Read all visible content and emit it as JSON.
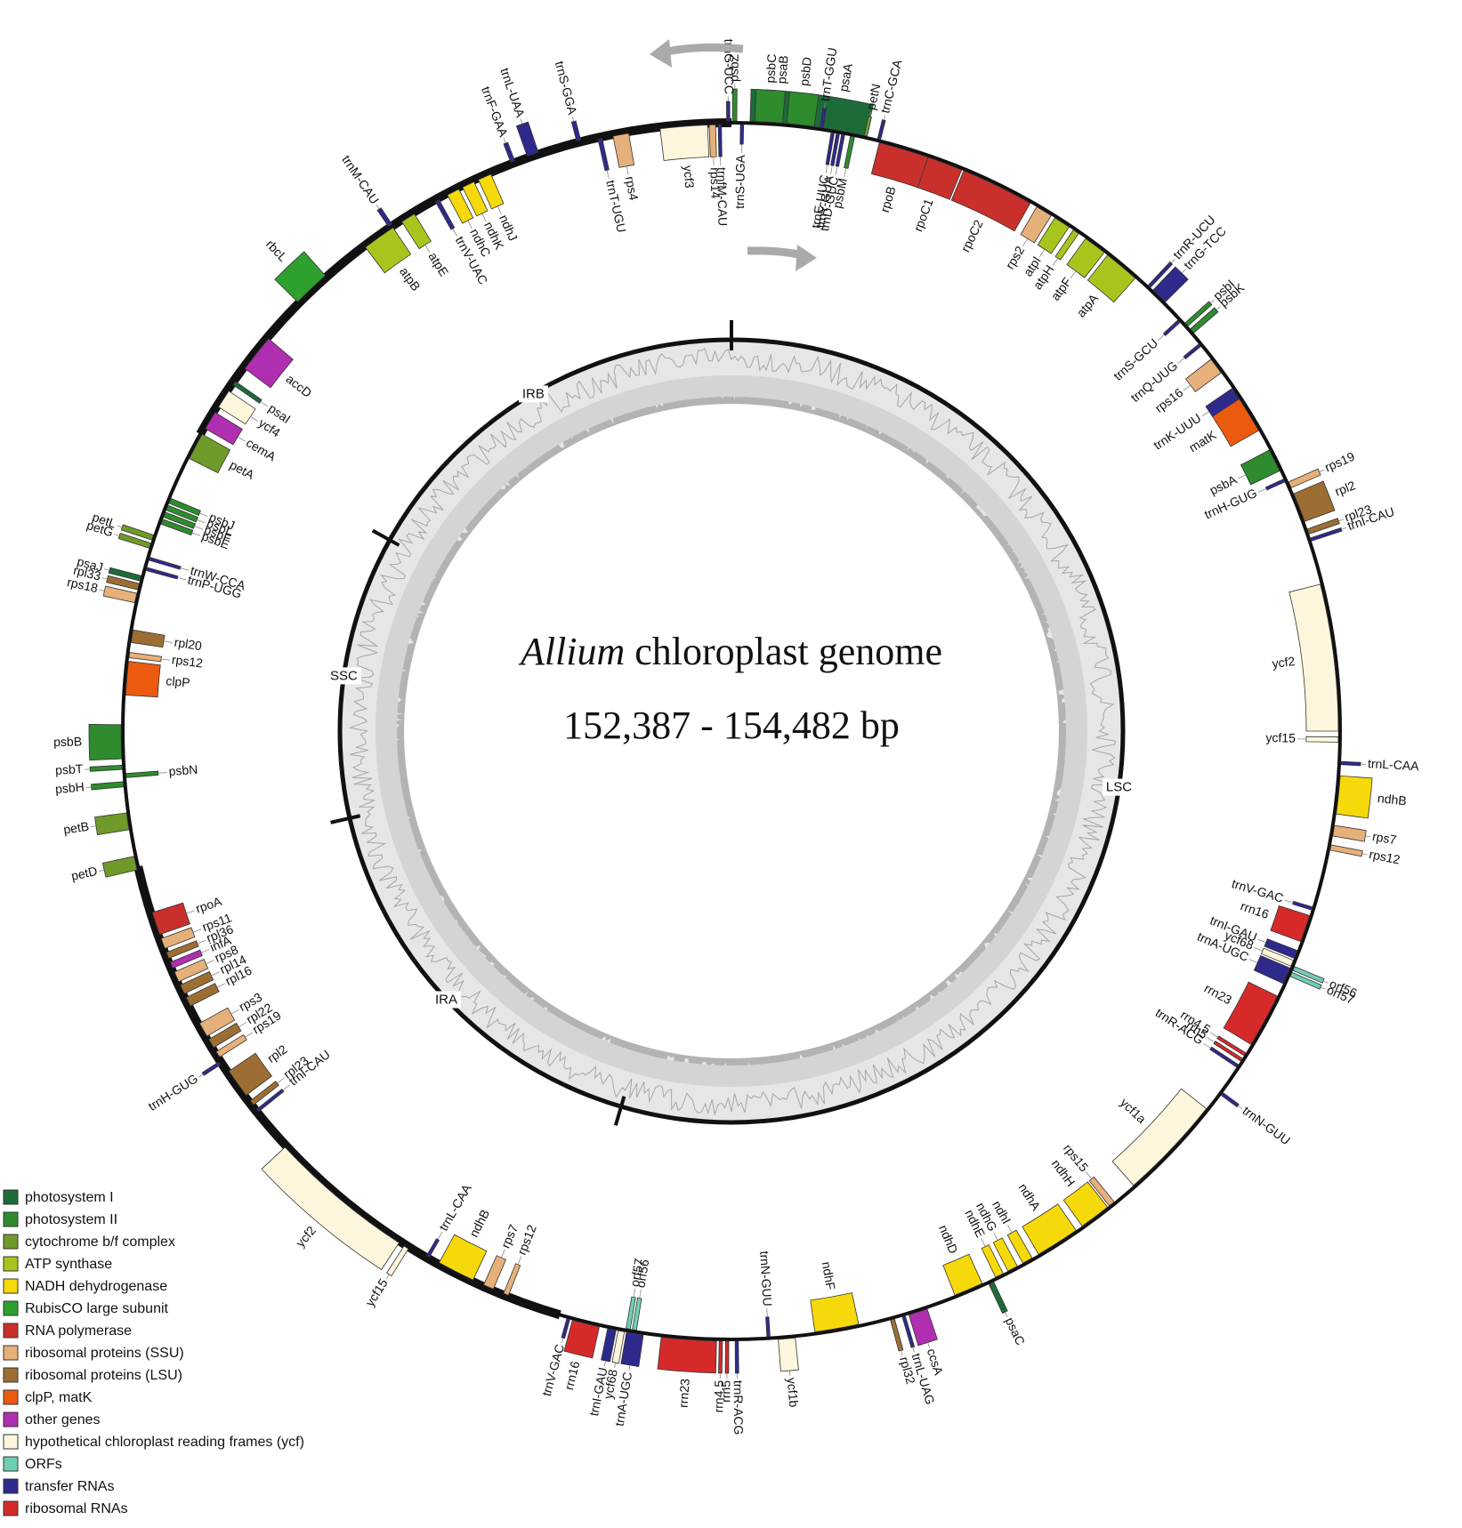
{
  "title": {
    "genus": "Allium",
    "rest": "chloroplast genome",
    "size": "152,387 - 154,482 bp"
  },
  "regions": [
    {
      "label": "LSC",
      "start": 0,
      "end": 84000
    },
    {
      "label": "IRA",
      "start": 84000,
      "end": 110000
    },
    {
      "label": "SSC",
      "start": 110000,
      "end": 128000
    },
    {
      "label": "IRB",
      "start": 128000,
      "end": 154000
    }
  ],
  "genome_length": 154000,
  "categories": [
    {
      "key": "psI",
      "label": "photosystem I",
      "color": "#1e6b3a"
    },
    {
      "key": "psII",
      "label": "photosystem II",
      "color": "#2e8b2e"
    },
    {
      "key": "cyt",
      "label": "cytochrome b/f complex",
      "color": "#6f9a2a"
    },
    {
      "key": "atp",
      "label": "ATP synthase",
      "color": "#a6c61e"
    },
    {
      "key": "ndh",
      "label": "NADH dehydrogenase",
      "color": "#f5d90a"
    },
    {
      "key": "rbc",
      "label": "RubisCO large subunit",
      "color": "#2ea02e"
    },
    {
      "key": "rpo",
      "label": "RNA polymerase",
      "color": "#c9302c"
    },
    {
      "key": "ssu",
      "label": "ribosomal proteins (SSU)",
      "color": "#e6b07a"
    },
    {
      "key": "lsu",
      "label": "ribosomal proteins (LSU)",
      "color": "#9c6e34"
    },
    {
      "key": "clp",
      "label": "clpP, matK",
      "color": "#ec5a10"
    },
    {
      "key": "oth",
      "label": "other genes",
      "color": "#b02eb0"
    },
    {
      "key": "ycf",
      "label": "hypothetical chloroplast reading frames (ycf)",
      "color": "#fdf6dc"
    },
    {
      "key": "orf",
      "label": "ORFs",
      "color": "#6fcfb5"
    },
    {
      "key": "trna",
      "label": "transfer RNAs",
      "color": "#2e2a8c"
    },
    {
      "key": "rrna",
      "label": "ribosomal RNAs",
      "color": "#d62a2a"
    }
  ],
  "genes": [
    {
      "name": "psaA",
      "cat": "psI",
      "deg": 10,
      "w": 5.5,
      "side": "out",
      "h": 36
    },
    {
      "name": "psaB",
      "cat": "psI",
      "deg": 4.5,
      "w": 5.5,
      "side": "out",
      "h": 36
    },
    {
      "name": "ycf3",
      "cat": "ycf",
      "deg": 355.5,
      "w": 4.5,
      "side": "in",
      "h": 36
    },
    {
      "name": "rps4",
      "cat": "ssu",
      "deg": 349.5,
      "w": 1.5,
      "side": "in",
      "h": 36
    },
    {
      "name": "trnT-UGU",
      "cat": "trna",
      "deg": 347.5,
      "w": 0.4,
      "side": "in",
      "h": 36
    },
    {
      "name": "trnS-GGA",
      "cat": "trna",
      "deg": 345.5,
      "w": 0.4,
      "side": "out",
      "h": 22
    },
    {
      "name": "trnL-UAA",
      "cat": "trna",
      "deg": 341,
      "w": 1.1,
      "side": "out",
      "h": 36
    },
    {
      "name": "trnF-GAA",
      "cat": "trna",
      "deg": 339,
      "w": 0.4,
      "side": "out",
      "h": 22
    },
    {
      "name": "ndhJ",
      "cat": "ndh",
      "deg": 336,
      "w": 1.3,
      "side": "in",
      "h": 36
    },
    {
      "name": "ndhK",
      "cat": "ndh",
      "deg": 334.3,
      "w": 1.2,
      "side": "in",
      "h": 36
    },
    {
      "name": "ndhC",
      "cat": "ndh",
      "deg": 332.7,
      "w": 1.2,
      "side": "in",
      "h": 36
    },
    {
      "name": "trnV-UAC",
      "cat": "trna",
      "deg": 331,
      "w": 0.4,
      "side": "in",
      "h": 36
    },
    {
      "name": "trnM-CAU",
      "cat": "trna",
      "deg": 326,
      "w": 0.4,
      "side": "out",
      "h": 22
    },
    {
      "name": "atpE",
      "cat": "atp",
      "deg": 327.8,
      "w": 1.4,
      "side": "in",
      "h": 36
    },
    {
      "name": "atpB",
      "cat": "atp",
      "deg": 324.5,
      "w": 3.2,
      "side": "in",
      "h": 36
    },
    {
      "name": "rbcL",
      "cat": "rbc",
      "deg": 316.5,
      "w": 3.6,
      "side": "out",
      "h": 36
    },
    {
      "name": "accD",
      "cat": "oth",
      "deg": 308.5,
      "w": 3.6,
      "side": "in",
      "h": 36
    },
    {
      "name": "psaI",
      "cat": "psI",
      "deg": 305,
      "w": 0.4,
      "side": "in",
      "h": 36
    },
    {
      "name": "ycf4",
      "cat": "ycf",
      "deg": 303.2,
      "w": 1.8,
      "side": "in",
      "h": 36
    },
    {
      "name": "cemA",
      "cat": "oth",
      "deg": 300.8,
      "w": 1.8,
      "side": "in",
      "h": 36
    },
    {
      "name": "petA",
      "cat": "cyt",
      "deg": 298,
      "w": 2.6,
      "side": "in",
      "h": 36
    },
    {
      "name": "psbJ",
      "cat": "psII",
      "deg": 292.3,
      "w": 0.5,
      "side": "in",
      "h": 36
    },
    {
      "name": "psbL",
      "cat": "psII",
      "deg": 291.6,
      "w": 0.5,
      "side": "in",
      "h": 36
    },
    {
      "name": "psbF",
      "cat": "psII",
      "deg": 290.9,
      "w": 0.5,
      "side": "in",
      "h": 36
    },
    {
      "name": "psbE",
      "cat": "psII",
      "deg": 290.2,
      "w": 0.5,
      "side": "in",
      "h": 36
    },
    {
      "name": "petL",
      "cat": "cyt",
      "deg": 288.5,
      "w": 0.5,
      "side": "out",
      "h": 36
    },
    {
      "name": "petG",
      "cat": "cyt",
      "deg": 287.7,
      "w": 0.5,
      "side": "out",
      "h": 36
    },
    {
      "name": "trnW-CCA",
      "cat": "trna",
      "deg": 286.5,
      "w": 0.3,
      "side": "in",
      "h": 36
    },
    {
      "name": "trnP-UGG",
      "cat": "trna",
      "deg": 285.5,
      "w": 0.3,
      "side": "in",
      "h": 36
    },
    {
      "name": "psaJ",
      "cat": "psI",
      "deg": 284.5,
      "w": 0.5,
      "side": "out",
      "h": 36
    },
    {
      "name": "rpl33",
      "cat": "lsu",
      "deg": 283.7,
      "w": 0.6,
      "side": "out",
      "h": 36
    },
    {
      "name": "rps18",
      "cat": "ssu",
      "deg": 282.6,
      "w": 0.9,
      "side": "out",
      "h": 36
    },
    {
      "name": "rpl20",
      "cat": "lsu",
      "deg": 279,
      "w": 1.2,
      "side": "in",
      "h": 36
    },
    {
      "name": "rps12",
      "cat": "ssu",
      "deg": 277.2,
      "w": 0.5,
      "side": "in",
      "h": 36
    },
    {
      "name": "clpP",
      "cat": "clp",
      "deg": 275,
      "w": 3.2,
      "side": "in",
      "h": 36
    },
    {
      "name": "psbB",
      "cat": "psII",
      "deg": 269,
      "w": 3.2,
      "side": "out",
      "h": 36
    },
    {
      "name": "psbT",
      "cat": "psII",
      "deg": 266.6,
      "w": 0.4,
      "side": "out",
      "h": 36
    },
    {
      "name": "psbN",
      "cat": "psII",
      "deg": 265.8,
      "w": 0.4,
      "side": "in",
      "h": 36
    },
    {
      "name": "psbH",
      "cat": "psII",
      "deg": 265,
      "w": 0.5,
      "side": "out",
      "h": 36
    },
    {
      "name": "petB",
      "cat": "cyt",
      "deg": 261.5,
      "w": 1.6,
      "side": "out",
      "h": 36
    },
    {
      "name": "petD",
      "cat": "cyt",
      "deg": 257.5,
      "w": 1.3,
      "side": "out",
      "h": 36
    },
    {
      "name": "rpoA",
      "cat": "rpo",
      "deg": 251.5,
      "w": 2.2,
      "side": "in",
      "h": 36
    },
    {
      "name": "rps11",
      "cat": "ssu",
      "deg": 249.5,
      "w": 1.0,
      "side": "in",
      "h": 36
    },
    {
      "name": "rpl36",
      "cat": "lsu",
      "deg": 248.3,
      "w": 0.6,
      "side": "in",
      "h": 36
    },
    {
      "name": "infA",
      "cat": "oth",
      "deg": 247.3,
      "w": 0.6,
      "side": "in",
      "h": 36
    },
    {
      "name": "rps8",
      "cat": "ssu",
      "deg": 246.1,
      "w": 1.0,
      "side": "in",
      "h": 36
    },
    {
      "name": "rpl14",
      "cat": "lsu",
      "deg": 244.8,
      "w": 0.9,
      "side": "in",
      "h": 36
    },
    {
      "name": "rpl16",
      "cat": "lsu",
      "deg": 243.5,
      "w": 0.9,
      "side": "in",
      "h": 36
    },
    {
      "name": "rps3",
      "cat": "ssu",
      "deg": 240.5,
      "w": 1.4,
      "side": "in",
      "h": 36
    },
    {
      "name": "rpl22",
      "cat": "lsu",
      "deg": 239,
      "w": 0.9,
      "side": "in",
      "h": 36
    },
    {
      "name": "rps19",
      "cat": "ssu",
      "deg": 237.8,
      "w": 0.6,
      "side": "in",
      "h": 36
    },
    {
      "name": "rpl2",
      "cat": "lsu",
      "deg": 234.5,
      "w": 2.8,
      "side": "in",
      "h": 36
    },
    {
      "name": "trnH-GUG",
      "cat": "trna",
      "deg": 237,
      "w": 0.3,
      "side": "out",
      "h": 22
    },
    {
      "name": "rpl23",
      "cat": "lsu",
      "deg": 232.2,
      "w": 0.5,
      "side": "in",
      "h": 36
    },
    {
      "name": "trnI-CAU",
      "cat": "trna",
      "deg": 231.3,
      "w": 0.3,
      "side": "in",
      "h": 36
    },
    {
      "name": "ycf2",
      "cat": "ycf",
      "deg": 220,
      "w": 14,
      "side": "out",
      "h": 36
    },
    {
      "name": "ycf15",
      "cat": "ycf",
      "deg": 212.2,
      "w": 0.5,
      "side": "out",
      "h": 36
    },
    {
      "name": "trnL-CAA",
      "cat": "trna",
      "deg": 210,
      "w": 0.3,
      "side": "in",
      "h": 22
    },
    {
      "name": "ndhB",
      "cat": "ndh",
      "deg": 207,
      "w": 3.6,
      "side": "in",
      "h": 36
    },
    {
      "name": "rps7",
      "cat": "ssu",
      "deg": 203.6,
      "w": 1.0,
      "side": "in",
      "h": 36
    },
    {
      "name": "rps12",
      "cat": "ssu",
      "deg": 201.8,
      "w": 0.5,
      "side": "in",
      "h": 36
    },
    {
      "name": "trnV-GAC",
      "cat": "trna",
      "deg": 195.5,
      "w": 0.3,
      "side": "out",
      "h": 22
    },
    {
      "name": "rrn16",
      "cat": "rrna",
      "deg": 193.8,
      "w": 2.6,
      "side": "out",
      "h": 36
    },
    {
      "name": "trnI-GAU",
      "cat": "trna",
      "deg": 191.3,
      "w": 0.8,
      "side": "out",
      "h": 36
    },
    {
      "name": "ycf68",
      "cat": "ycf",
      "deg": 190.4,
      "w": 0.6,
      "side": "out",
      "h": 36
    },
    {
      "name": "trnA-UGC",
      "cat": "trna",
      "deg": 189.1,
      "w": 1.6,
      "side": "out",
      "h": 36
    },
    {
      "name": "orf57",
      "cat": "orf",
      "deg": 189.8,
      "w": 0.4,
      "side": "in",
      "h": 36
    },
    {
      "name": "orf56",
      "cat": "orf",
      "deg": 189.2,
      "w": 0.4,
      "side": "in",
      "h": 36
    },
    {
      "name": "rrn23",
      "cat": "rrna",
      "deg": 184,
      "w": 5.2,
      "side": "out",
      "h": 36
    },
    {
      "name": "rrn4.5",
      "cat": "rrna",
      "deg": 181,
      "w": 0.3,
      "side": "out",
      "h": 36
    },
    {
      "name": "rrn5",
      "cat": "rrna",
      "deg": 180.4,
      "w": 0.3,
      "side": "out",
      "h": 36
    },
    {
      "name": "trnR-ACG",
      "cat": "trna",
      "deg": 179.5,
      "w": 0.3,
      "side": "out",
      "h": 36
    },
    {
      "name": "trnN-GUU",
      "cat": "trna",
      "deg": 176.5,
      "w": 0.3,
      "side": "in",
      "h": 22
    },
    {
      "name": "ycf1b",
      "cat": "ycf",
      "deg": 174.8,
      "w": 1.6,
      "side": "out",
      "h": 36
    },
    {
      "name": "ndhF",
      "cat": "ndh",
      "deg": 170,
      "w": 4.2,
      "side": "in",
      "h": 36
    },
    {
      "name": "rpl32",
      "cat": "lsu",
      "deg": 164.7,
      "w": 0.4,
      "side": "out",
      "h": 36
    },
    {
      "name": "trnL-UAG",
      "cat": "trna",
      "deg": 163.6,
      "w": 0.3,
      "side": "out",
      "h": 36
    },
    {
      "name": "ccsA",
      "cat": "oth",
      "deg": 162.2,
      "w": 1.8,
      "side": "out",
      "h": 36
    },
    {
      "name": "ndhD",
      "cat": "ndh",
      "deg": 157,
      "w": 2.8,
      "side": "in",
      "h": 36
    },
    {
      "name": "psaC",
      "cat": "psI",
      "deg": 154.8,
      "w": 0.5,
      "side": "out",
      "h": 36
    },
    {
      "name": "ndhE",
      "cat": "ndh",
      "deg": 153.8,
      "w": 0.8,
      "side": "in",
      "h": 36
    },
    {
      "name": "ndhG",
      "cat": "ndh",
      "deg": 152.4,
      "w": 1.0,
      "side": "in",
      "h": 36
    },
    {
      "name": "ndhI",
      "cat": "ndh",
      "deg": 150.8,
      "w": 1.0,
      "side": "in",
      "h": 36
    },
    {
      "name": "ndhA",
      "cat": "ndh",
      "deg": 147.5,
      "w": 4.2,
      "side": "in",
      "h": 36
    },
    {
      "name": "ndhH",
      "cat": "ndh",
      "deg": 143.2,
      "w": 3.0,
      "side": "in",
      "h": 36
    },
    {
      "name": "rps15",
      "cat": "ssu",
      "deg": 141.2,
      "w": 0.6,
      "side": "in",
      "h": 36
    },
    {
      "name": "ycf1a",
      "cat": "ycf",
      "deg": 133.5,
      "w": 10,
      "side": "in",
      "h": 36
    },
    {
      "name": "trnN-GUU",
      "cat": "trna",
      "deg": 126.5,
      "w": 0.3,
      "side": "out",
      "h": 22
    },
    {
      "name": "trnR-ACG",
      "cat": "trna",
      "deg": 123.5,
      "w": 0.3,
      "side": "in",
      "h": 36
    },
    {
      "name": "rrn5",
      "cat": "rrna",
      "deg": 122.8,
      "w": 0.3,
      "side": "in",
      "h": 36
    },
    {
      "name": "rrn4.5",
      "cat": "rrna",
      "deg": 122.2,
      "w": 0.3,
      "side": "in",
      "h": 36
    },
    {
      "name": "rrn23",
      "cat": "rrna",
      "deg": 118.5,
      "w": 5.2,
      "side": "in",
      "h": 36
    },
    {
      "name": "trnA-UGC",
      "cat": "trna",
      "deg": 113.8,
      "w": 1.6,
      "side": "in",
      "h": 36
    },
    {
      "name": "ycf68",
      "cat": "ycf",
      "deg": 112.5,
      "w": 0.6,
      "side": "in",
      "h": 36
    },
    {
      "name": "trnI-GAU",
      "cat": "trna",
      "deg": 111.6,
      "w": 0.8,
      "side": "in",
      "h": 36
    },
    {
      "name": "orf57",
      "cat": "orf",
      "deg": 113.5,
      "w": 0.4,
      "side": "out",
      "h": 36
    },
    {
      "name": "orf56",
      "cat": "orf",
      "deg": 112.9,
      "w": 0.4,
      "side": "out",
      "h": 36
    },
    {
      "name": "rrn16",
      "cat": "rrna",
      "deg": 109,
      "w": 2.6,
      "side": "in",
      "h": 36
    },
    {
      "name": "trnV-GAC",
      "cat": "trna",
      "deg": 107,
      "w": 0.3,
      "side": "in",
      "h": 22
    },
    {
      "name": "rps12",
      "cat": "ssu",
      "deg": 101,
      "w": 0.5,
      "side": "out",
      "h": 36
    },
    {
      "name": "rps7",
      "cat": "ssu",
      "deg": 99.4,
      "w": 1.0,
      "side": "out",
      "h": 36
    },
    {
      "name": "ndhB",
      "cat": "ndh",
      "deg": 96,
      "w": 3.6,
      "side": "out",
      "h": 36
    },
    {
      "name": "trnL-CAA",
      "cat": "trna",
      "deg": 93,
      "w": 0.3,
      "side": "out",
      "h": 22
    },
    {
      "name": "ycf15",
      "cat": "ycf",
      "deg": 90.8,
      "w": 0.5,
      "side": "in",
      "h": 36
    },
    {
      "name": "ycf2",
      "cat": "ycf",
      "deg": 83,
      "w": 14,
      "side": "in",
      "h": 36
    },
    {
      "name": "trnI-CAU",
      "cat": "trna",
      "deg": 71.7,
      "w": 0.3,
      "side": "out",
      "h": 36
    },
    {
      "name": "rpl23",
      "cat": "lsu",
      "deg": 70.9,
      "w": 0.5,
      "side": "out",
      "h": 36
    },
    {
      "name": "rpl2",
      "cat": "lsu",
      "deg": 68.5,
      "w": 2.8,
      "side": "out",
      "h": 36
    },
    {
      "name": "rps19",
      "cat": "ssu",
      "deg": 66.2,
      "w": 0.6,
      "side": "out",
      "h": 36
    },
    {
      "name": "trnH-GUG",
      "cat": "trna",
      "deg": 65.6,
      "w": 0.3,
      "side": "in",
      "h": 22
    },
    {
      "name": "psbA",
      "cat": "psII",
      "deg": 63.5,
      "w": 2.2,
      "side": "in",
      "h": 36
    },
    {
      "name": "matK",
      "cat": "clp",
      "deg": 58.5,
      "w": 3.6,
      "side": "in",
      "h": 36
    },
    {
      "name": "trnK-UUU",
      "cat": "trna",
      "deg": 56.2,
      "w": 1.2,
      "side": "in",
      "h": 36
    },
    {
      "name": "rps16",
      "cat": "ssu",
      "deg": 53,
      "w": 1.6,
      "side": "in",
      "h": 36
    },
    {
      "name": "trnQ-UUG",
      "cat": "trna",
      "deg": 50.5,
      "w": 0.3,
      "side": "in",
      "h": 22
    },
    {
      "name": "psbK",
      "cat": "psII",
      "deg": 49,
      "w": 0.5,
      "side": "out",
      "h": 36
    },
    {
      "name": "psbI",
      "cat": "psII",
      "deg": 48.2,
      "w": 0.4,
      "side": "out",
      "h": 36
    },
    {
      "name": "trnS-GCU",
      "cat": "trna",
      "deg": 47.5,
      "w": 0.3,
      "side": "in",
      "h": 22
    },
    {
      "name": "trnG-TCC",
      "cat": "trna",
      "deg": 44.5,
      "w": 1.6,
      "side": "out",
      "h": 36
    },
    {
      "name": "trnR-UCU",
      "cat": "trna",
      "deg": 43.2,
      "w": 0.3,
      "side": "out",
      "h": 36
    },
    {
      "name": "atpA",
      "cat": "atp",
      "deg": 40,
      "w": 3.4,
      "side": "in",
      "h": 36
    },
    {
      "name": "atpF",
      "cat": "atp",
      "deg": 36.8,
      "w": 2.2,
      "side": "in",
      "h": 36
    },
    {
      "name": "atpH",
      "cat": "atp",
      "deg": 34.6,
      "w": 0.6,
      "side": "in",
      "h": 36
    },
    {
      "name": "atpI",
      "cat": "atp",
      "deg": 33,
      "w": 1.6,
      "side": "in",
      "h": 36
    },
    {
      "name": "rps2",
      "cat": "ssu",
      "deg": 31,
      "w": 1.6,
      "side": "in",
      "h": 36
    },
    {
      "name": "rpoC2",
      "cat": "rpo",
      "deg": 26,
      "w": 7,
      "side": "in",
      "h": 36
    },
    {
      "name": "rpoC1",
      "cat": "rpo",
      "deg": 20.5,
      "w": 3.6,
      "side": "in",
      "h": 36
    },
    {
      "name": "rpoB",
      "cat": "rpo",
      "deg": 16.5,
      "w": 4.8,
      "side": "in",
      "h": 36
    },
    {
      "name": "trnC-GCA",
      "cat": "trna",
      "deg": 14,
      "w": 0.3,
      "side": "out",
      "h": 22
    },
    {
      "name": "petN",
      "cat": "cyt",
      "deg": 12.7,
      "w": 0.3,
      "side": "out",
      "h": 22
    },
    {
      "name": "psbM",
      "cat": "psII",
      "deg": 11.5,
      "w": 0.4,
      "side": "in",
      "h": 36
    },
    {
      "name": "trnD-GUC",
      "cat": "trna",
      "deg": 10.6,
      "w": 0.3,
      "side": "in",
      "h": 36
    },
    {
      "name": "trnY-GUA",
      "cat": "trna",
      "deg": 10.1,
      "w": 0.3,
      "side": "in",
      "h": 36
    },
    {
      "name": "trnE-UUC",
      "cat": "trna",
      "deg": 9.6,
      "w": 0.3,
      "side": "in",
      "h": 36
    },
    {
      "name": "trnT-GGU",
      "cat": "trna",
      "deg": 8.5,
      "w": 0.3,
      "side": "out",
      "h": 22
    },
    {
      "name": "psbD",
      "cat": "psII",
      "deg": 6.5,
      "w": 2.6,
      "side": "out",
      "h": 36
    },
    {
      "name": "psbC",
      "cat": "psII",
      "deg": 3.5,
      "w": 2.6,
      "side": "out",
      "h": 36
    },
    {
      "name": "trnS-UGA",
      "cat": "trna",
      "deg": 1.0,
      "w": 0.3,
      "side": "in",
      "h": 22
    },
    {
      "name": "psbZ",
      "cat": "psII",
      "deg": 0.3,
      "w": 0.4,
      "side": "out",
      "h": 36
    },
    {
      "name": "trnG-UCC",
      "cat": "trna",
      "deg": 359.7,
      "w": 0.3,
      "side": "out",
      "h": 22
    },
    {
      "name": "trnfM-CAU",
      "cat": "trna",
      "deg": 358.9,
      "w": 0.3,
      "side": "in",
      "h": 36
    },
    {
      "name": "rps14",
      "cat": "ssu",
      "deg": 358.2,
      "w": 0.6,
      "side": "in",
      "h": 36
    }
  ]
}
